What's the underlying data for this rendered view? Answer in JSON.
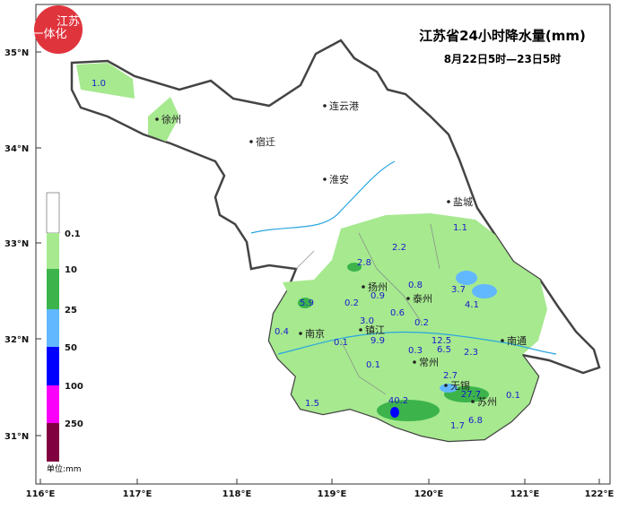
{
  "header": {
    "title": "江苏省24小时降水量(mm)",
    "subtitle": "8月22日5时—23日5时"
  },
  "logo": {
    "line1": "江苏",
    "line2": "一体化"
  },
  "legend": {
    "labels": [
      "0.1",
      "10",
      "25",
      "50",
      "100",
      "250"
    ],
    "unit": "单位:mm"
  },
  "axes": {
    "lon": [
      "116°E",
      "117°E",
      "118°E",
      "119°E",
      "120°E",
      "121°E",
      "122°E"
    ],
    "lat": [
      "35°N",
      "34°N",
      "33°N",
      "32°N",
      "31°N"
    ]
  },
  "cities": [
    "连云港",
    "宿迁",
    "淮安",
    "盐城",
    "徐州",
    "扬州",
    "泰州",
    "南京",
    "镇江",
    "常州",
    "无锡",
    "苏州",
    "南通"
  ],
  "values": [
    "1.0",
    "1.1",
    "2.2",
    "2.8",
    "0.8",
    "0.9",
    "3.7",
    "4.1",
    "5.9",
    "0.2",
    "3.0",
    "0.6",
    "0.2",
    "9.9",
    "0.4",
    "0.1",
    "12.5",
    "6.5",
    "0.3",
    "2.3",
    "0.1",
    "2.7",
    "27.7",
    "0.1",
    "40.2",
    "1.5",
    "6.8",
    "1.7"
  ]
}
